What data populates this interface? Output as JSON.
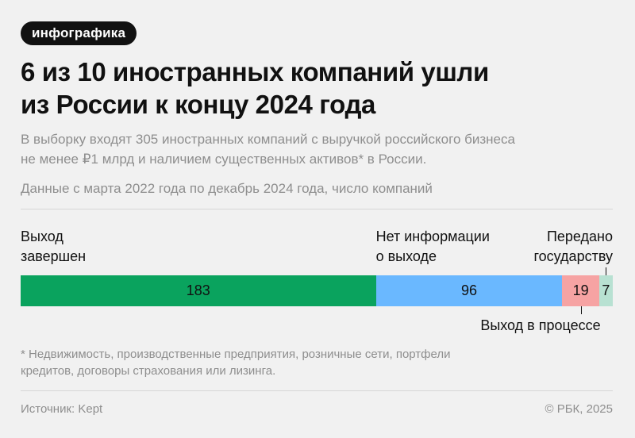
{
  "tag": "инфографика",
  "title_line1": "6 из 10 иностранных компаний ушли",
  "title_line2": "из России к концу 2024 года",
  "subtitle_line1": "В выборку входят 305 иностранных компаний с выручкой российского бизнеса",
  "subtitle_line2": "не менее ₽1 млрд и наличием существенных активов* в России.",
  "note": "Данные с марта 2022 года по декабрь 2024 года, число компаний",
  "chart_data": {
    "type": "bar",
    "orientation": "horizontal-stacked",
    "total": 305,
    "categories": [
      {
        "label_lines": [
          "Выход",
          "завершен"
        ],
        "value": 183,
        "color": "#0aa35e"
      },
      {
        "label_lines": [
          "Нет информации",
          "о выходе"
        ],
        "value": 96,
        "color": "#6ab8ff"
      },
      {
        "label_lines": [
          "Выход в процессе"
        ],
        "value": 19,
        "color": "#f6a3a3"
      },
      {
        "label_lines": [
          "Передано",
          "государству"
        ],
        "value": 7,
        "color": "#b8e1d2"
      }
    ]
  },
  "footnote_line1": "* Недвижимость, производственные предприятия, розничные сети, портфели",
  "footnote_line2": "кредитов, договоры страхования или лизинга.",
  "source": "Источник: Kept",
  "copyright": "© РБК, 2025"
}
